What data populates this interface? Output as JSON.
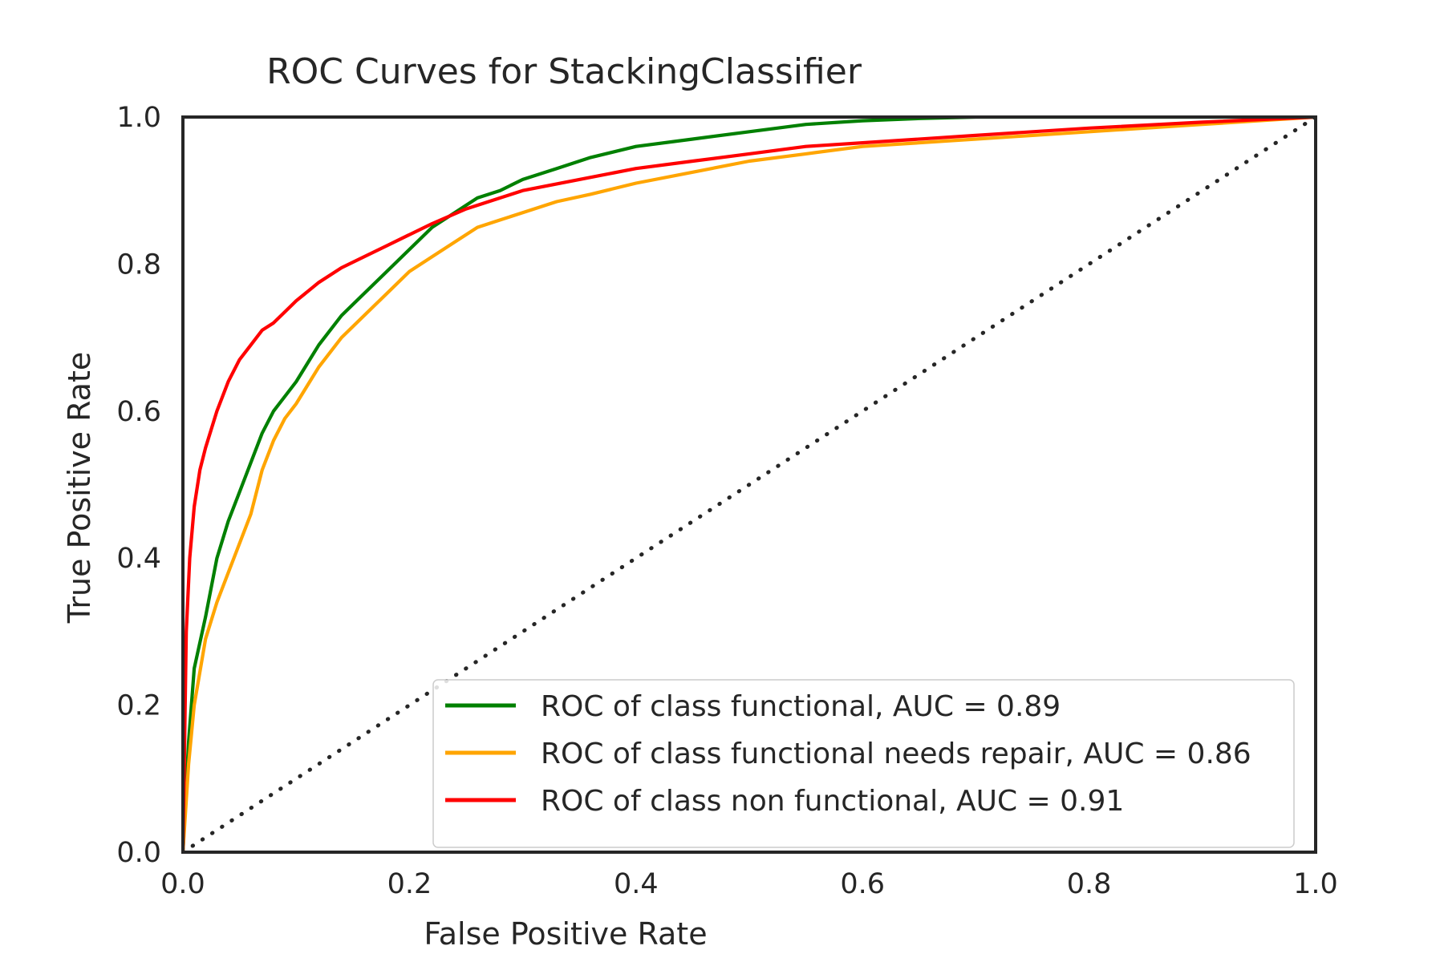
{
  "chart_data": {
    "type": "line",
    "title": "ROC Curves for StackingClassifier",
    "xlabel": "False Positive Rate",
    "ylabel": "True Positive Rate",
    "xlim": [
      0.0,
      1.0
    ],
    "ylim": [
      0.0,
      1.0
    ],
    "x_ticks": [
      "0.0",
      "0.2",
      "0.4",
      "0.6",
      "0.8",
      "1.0"
    ],
    "y_ticks": [
      "0.0",
      "0.2",
      "0.4",
      "0.6",
      "0.8",
      "1.0"
    ],
    "grid": false,
    "legend_position": "lower-right",
    "series": [
      {
        "name": "ROC of class functional, AUC = 0.89",
        "color": "#008000",
        "style": "solid",
        "x": [
          0.0,
          0.005,
          0.01,
          0.02,
          0.03,
          0.04,
          0.05,
          0.06,
          0.07,
          0.08,
          0.09,
          0.1,
          0.12,
          0.14,
          0.16,
          0.18,
          0.2,
          0.22,
          0.24,
          0.26,
          0.28,
          0.3,
          0.33,
          0.36,
          0.4,
          0.45,
          0.5,
          0.55,
          0.6,
          0.65,
          0.7,
          0.8,
          0.9,
          1.0
        ],
        "y": [
          0.0,
          0.15,
          0.25,
          0.32,
          0.4,
          0.45,
          0.49,
          0.53,
          0.57,
          0.6,
          0.62,
          0.64,
          0.69,
          0.73,
          0.76,
          0.79,
          0.82,
          0.85,
          0.87,
          0.89,
          0.9,
          0.915,
          0.93,
          0.945,
          0.96,
          0.97,
          0.98,
          0.99,
          0.995,
          0.998,
          1.0,
          1.0,
          1.0,
          1.0
        ]
      },
      {
        "name": "ROC of class functional needs repair, AUC = 0.86",
        "color": "#FFA500",
        "style": "solid",
        "x": [
          0.0,
          0.005,
          0.01,
          0.02,
          0.03,
          0.04,
          0.05,
          0.06,
          0.07,
          0.08,
          0.09,
          0.1,
          0.12,
          0.14,
          0.16,
          0.18,
          0.2,
          0.22,
          0.24,
          0.26,
          0.28,
          0.3,
          0.33,
          0.36,
          0.4,
          0.45,
          0.5,
          0.55,
          0.6,
          0.7,
          0.8,
          0.9,
          1.0
        ],
        "y": [
          0.0,
          0.12,
          0.2,
          0.29,
          0.34,
          0.38,
          0.42,
          0.46,
          0.52,
          0.56,
          0.59,
          0.61,
          0.66,
          0.7,
          0.73,
          0.76,
          0.79,
          0.81,
          0.83,
          0.85,
          0.86,
          0.87,
          0.885,
          0.895,
          0.91,
          0.925,
          0.94,
          0.95,
          0.96,
          0.97,
          0.98,
          0.99,
          1.0
        ]
      },
      {
        "name": "ROC of class non functional, AUC = 0.91",
        "color": "#FF0000",
        "style": "solid",
        "x": [
          0.0,
          0.003,
          0.006,
          0.01,
          0.015,
          0.02,
          0.03,
          0.04,
          0.05,
          0.06,
          0.07,
          0.08,
          0.1,
          0.12,
          0.14,
          0.16,
          0.18,
          0.2,
          0.22,
          0.25,
          0.28,
          0.3,
          0.35,
          0.4,
          0.45,
          0.5,
          0.55,
          0.6,
          0.7,
          0.8,
          0.9,
          1.0
        ],
        "y": [
          0.0,
          0.3,
          0.4,
          0.47,
          0.52,
          0.55,
          0.6,
          0.64,
          0.67,
          0.69,
          0.71,
          0.72,
          0.75,
          0.775,
          0.795,
          0.81,
          0.825,
          0.84,
          0.855,
          0.875,
          0.89,
          0.9,
          0.915,
          0.93,
          0.94,
          0.95,
          0.96,
          0.965,
          0.975,
          0.985,
          0.993,
          1.0
        ]
      },
      {
        "name": "",
        "color": "#262626",
        "style": "dotted",
        "x": [
          0.0,
          1.0
        ],
        "y": [
          0.0,
          1.0
        ]
      }
    ]
  }
}
